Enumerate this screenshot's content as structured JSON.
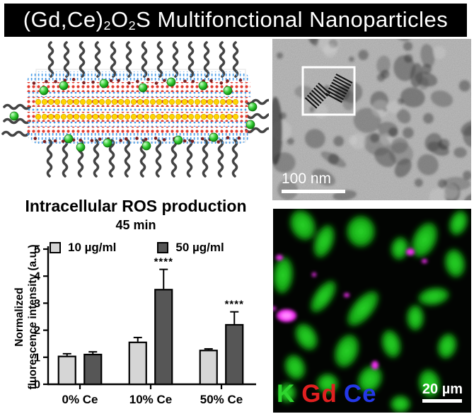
{
  "banner": {
    "segments": [
      {
        "text": "(Gd,Ce)"
      },
      {
        "text": "2",
        "sub": true
      },
      {
        "text": "O"
      },
      {
        "text": "2",
        "sub": true
      },
      {
        "text": "S Multifonctional Nanoparticles"
      }
    ],
    "bg_color": "#000000",
    "text_color": "#ffffff"
  },
  "schematic": {
    "description": "layered (Gd,Ce)2O2S nanoplatelet with polymer chains",
    "colors": {
      "chains": "#444444",
      "lattice_red": "#e23a2e",
      "lattice_blue": "#4a9ce8",
      "yellow_row": "#ffd400",
      "green_sphere": "#2bbf2b",
      "edge_dot": "#7d1f1f"
    }
  },
  "tem": {
    "scale_label": "100 nm"
  },
  "fluorescence": {
    "channels": [
      {
        "label": "K",
        "color": "#2ed52e"
      },
      {
        "label": "Gd",
        "color": "#e02020"
      },
      {
        "label": "Ce",
        "color": "#2438e8"
      }
    ],
    "scale_label": "20 µm"
  },
  "chart_data": {
    "type": "bar",
    "title": "Intracellular ROS production",
    "subtitle": "45 min",
    "categories": [
      "0% Ce",
      "10% Ce",
      "50% Ce"
    ],
    "series": [
      {
        "name": "10 µg/ml",
        "color": "#d6d6d6",
        "values": [
          1.03,
          1.55,
          1.25
        ],
        "errors": [
          0.1,
          0.18,
          0.06
        ]
      },
      {
        "name": "50 µg/ml",
        "color": "#565656",
        "values": [
          1.1,
          3.5,
          2.2
        ],
        "errors": [
          0.1,
          0.75,
          0.48
        ]
      }
    ],
    "significance": [
      {
        "category": "10% Ce",
        "series": "50 µg/ml",
        "label": "****"
      },
      {
        "category": "50% Ce",
        "series": "50 µg/ml",
        "label": "****"
      }
    ],
    "ylabel_lines": [
      "Normalized",
      "fluorescence intensity (a.u.)"
    ],
    "ylim": [
      0,
      5
    ],
    "yticks": [
      0,
      1,
      2,
      3,
      4,
      5
    ],
    "legend_position": "top"
  }
}
